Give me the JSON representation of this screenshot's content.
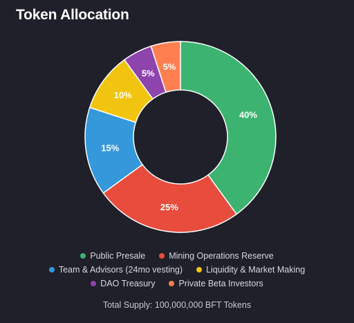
{
  "title": "Token Allocation",
  "chart_data": {
    "type": "pie",
    "variant": "donut",
    "categories": [
      "Public Presale",
      "Mining Operations Reserve",
      "Team & Advisors (24mo vesting)",
      "Liquidity & Market Making",
      "DAO Treasury",
      "Private Beta Investors"
    ],
    "values": [
      40,
      25,
      15,
      10,
      5,
      5
    ],
    "value_labels": [
      "40%",
      "25%",
      "15%",
      "10%",
      "5%",
      "5%"
    ],
    "colors": [
      "#3cb371",
      "#e74c3c",
      "#3498db",
      "#f1c40f",
      "#8e44ad",
      "#ff7f50"
    ],
    "legend_position": "bottom"
  },
  "legend": {
    "rows": [
      [
        {
          "label": "Public Presale",
          "color": "#3cb371"
        },
        {
          "label": "Mining Operations Reserve",
          "color": "#e74c3c"
        }
      ],
      [
        {
          "label": "Team & Advisors (24mo vesting)",
          "color": "#3498db"
        },
        {
          "label": "Liquidity & Market Making",
          "color": "#f1c40f"
        }
      ],
      [
        {
          "label": "DAO Treasury",
          "color": "#8e44ad"
        },
        {
          "label": "Private Beta Investors",
          "color": "#ff7f50"
        }
      ]
    ]
  },
  "footer": "Total Supply: 100,000,000 BFT Tokens"
}
